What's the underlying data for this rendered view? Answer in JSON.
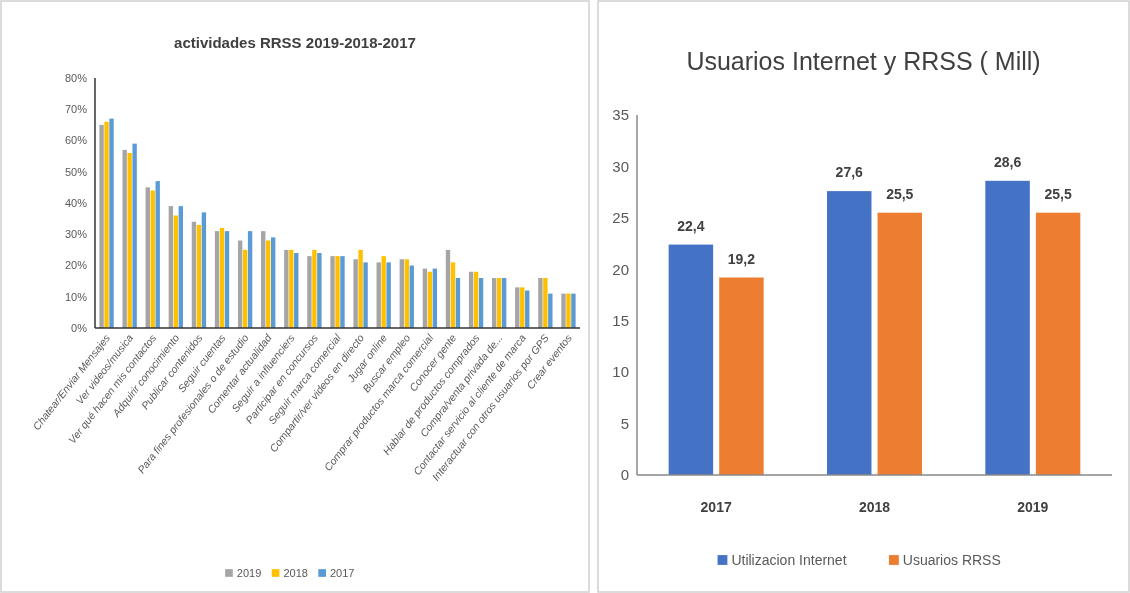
{
  "chart_data": [
    {
      "type": "bar",
      "title": "actividades RRSS 2019-2018-2017",
      "categories": [
        "Chatear/Enviar Mensajes",
        "Ver videos/musica",
        "Ver qué hacen mis contactos",
        "Adquirir conocimiento",
        "Publicar contenidos",
        "Seguir cuentas",
        "Para fines profesionales o de estudio",
        "Comentar actualidad",
        "Seguir a influenciers",
        "Participar en concursos",
        "Seguir marca comercial",
        "Compartir/ver videos en directo",
        "Jugar online",
        "Buscar empleo",
        "Comprar productos marca comercial",
        "Conocer gente",
        "Hablar de productos comprados",
        "Compra/venta privada de...",
        "Contactar servicio al cliente de marca",
        "Interactuar con otros usuarios por GPS",
        "Crear eventos"
      ],
      "series": [
        {
          "name": "2019",
          "color": "#a5a5a5",
          "values": [
            65,
            57,
            45,
            39,
            34,
            31,
            28,
            31,
            25,
            23,
            23,
            22,
            21,
            22,
            19,
            25,
            18,
            16,
            13,
            16,
            11
          ]
        },
        {
          "name": "2018",
          "color": "#ffc000",
          "values": [
            66,
            56,
            44,
            36,
            33,
            32,
            25,
            28,
            25,
            25,
            23,
            25,
            23,
            22,
            18,
            21,
            18,
            16,
            13,
            16,
            11
          ]
        },
        {
          "name": "2017",
          "color": "#5b9bd5",
          "values": [
            67,
            59,
            47,
            39,
            37,
            31,
            31,
            29,
            24,
            24,
            23,
            21,
            21,
            20,
            19,
            16,
            16,
            16,
            12,
            11,
            11
          ]
        }
      ],
      "ylim": [
        0,
        80
      ],
      "yticks": [
        {
          "value": 0,
          "label": "0%"
        },
        {
          "value": 10,
          "label": "10%"
        },
        {
          "value": 20,
          "label": "20%"
        },
        {
          "value": 30,
          "label": "30%"
        },
        {
          "value": 40,
          "label": "40%"
        },
        {
          "value": 50,
          "label": "50%"
        },
        {
          "value": 60,
          "label": "60%"
        },
        {
          "value": 70,
          "label": "70%"
        },
        {
          "value": 80,
          "label": "80%"
        }
      ],
      "grid": false,
      "legend": "bottom"
    },
    {
      "type": "bar",
      "title": "Usuarios Internet y RRSS ( Mill)",
      "categories": [
        "2017",
        "2018",
        "2019"
      ],
      "series": [
        {
          "name": "Utilizacion Internet",
          "color": "#4472c4",
          "values": [
            22.4,
            27.6,
            28.6
          ],
          "value_labels": [
            "22,4",
            "27,6",
            "28,6"
          ]
        },
        {
          "name": "Usuarios RRSS",
          "color": "#ed7d31",
          "values": [
            19.2,
            25.5,
            25.5
          ],
          "value_labels": [
            "19,2",
            "25,5",
            "25,5"
          ]
        }
      ],
      "ylim": [
        0,
        35
      ],
      "yticks": [
        0,
        5,
        10,
        15,
        20,
        25,
        30,
        35
      ],
      "grid": false,
      "legend": "bottom"
    }
  ]
}
